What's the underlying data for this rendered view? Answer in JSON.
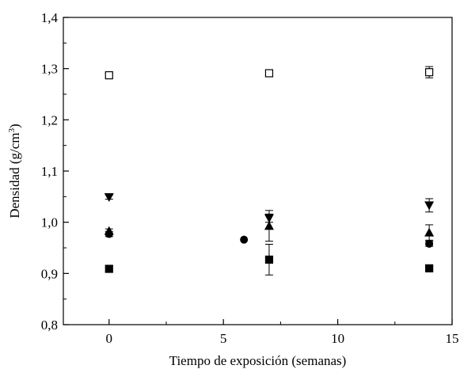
{
  "chart_data": {
    "type": "scatter",
    "title": "",
    "xlabel": "Tiempo de exposición (semanas)",
    "ylabel_text": "Densidad (g/cm",
    "ylabel_sup": "3",
    "ylabel_close": ")",
    "xlim": [
      -2,
      15
    ],
    "ylim": [
      0.8,
      1.4
    ],
    "x_ticks": [
      0,
      5,
      10,
      15
    ],
    "x_tick_labels": [
      "0",
      "5",
      "10",
      "15"
    ],
    "y_ticks": [
      0.8,
      0.9,
      1.0,
      1.1,
      1.2,
      1.3,
      1.4
    ],
    "y_tick_labels": [
      "0,8",
      "0,9",
      "1,0",
      "1,1",
      "1,2",
      "1,3",
      "1,4"
    ],
    "grid": false,
    "legend": "none",
    "series": [
      {
        "marker": "square-open",
        "points": [
          {
            "x": 0,
            "y": 1.287,
            "err": 0.004
          },
          {
            "x": 7,
            "y": 1.291,
            "err": 0.004
          },
          {
            "x": 14,
            "y": 1.293,
            "err": 0.011
          }
        ]
      },
      {
        "marker": "triangle-down",
        "points": [
          {
            "x": 0,
            "y": 1.049,
            "err": 0.004
          },
          {
            "x": 7,
            "y": 1.008,
            "err": 0.008
          },
          {
            "x": 14,
            "y": 1.033,
            "err": 0.013
          }
        ]
      },
      {
        "marker": "triangle-up",
        "points": [
          {
            "x": 0,
            "y": 0.983,
            "err": 0.004
          },
          {
            "x": 7,
            "y": 0.993,
            "err": 0.03
          },
          {
            "x": 14,
            "y": 0.98,
            "err": 0.015
          }
        ]
      },
      {
        "marker": "circle",
        "points": [
          {
            "x": 0,
            "y": 0.977,
            "err": 0.005
          },
          {
            "x": 5.9,
            "y": 0.966,
            "err": 0
          },
          {
            "x": 14,
            "y": 0.958,
            "err": 0.005
          }
        ]
      },
      {
        "marker": "square",
        "points": [
          {
            "x": 0,
            "y": 0.909,
            "err": 0.006
          },
          {
            "x": 7,
            "y": 0.927,
            "err": 0.03
          },
          {
            "x": 14,
            "y": 0.91,
            "err": 0.003
          }
        ]
      }
    ]
  }
}
